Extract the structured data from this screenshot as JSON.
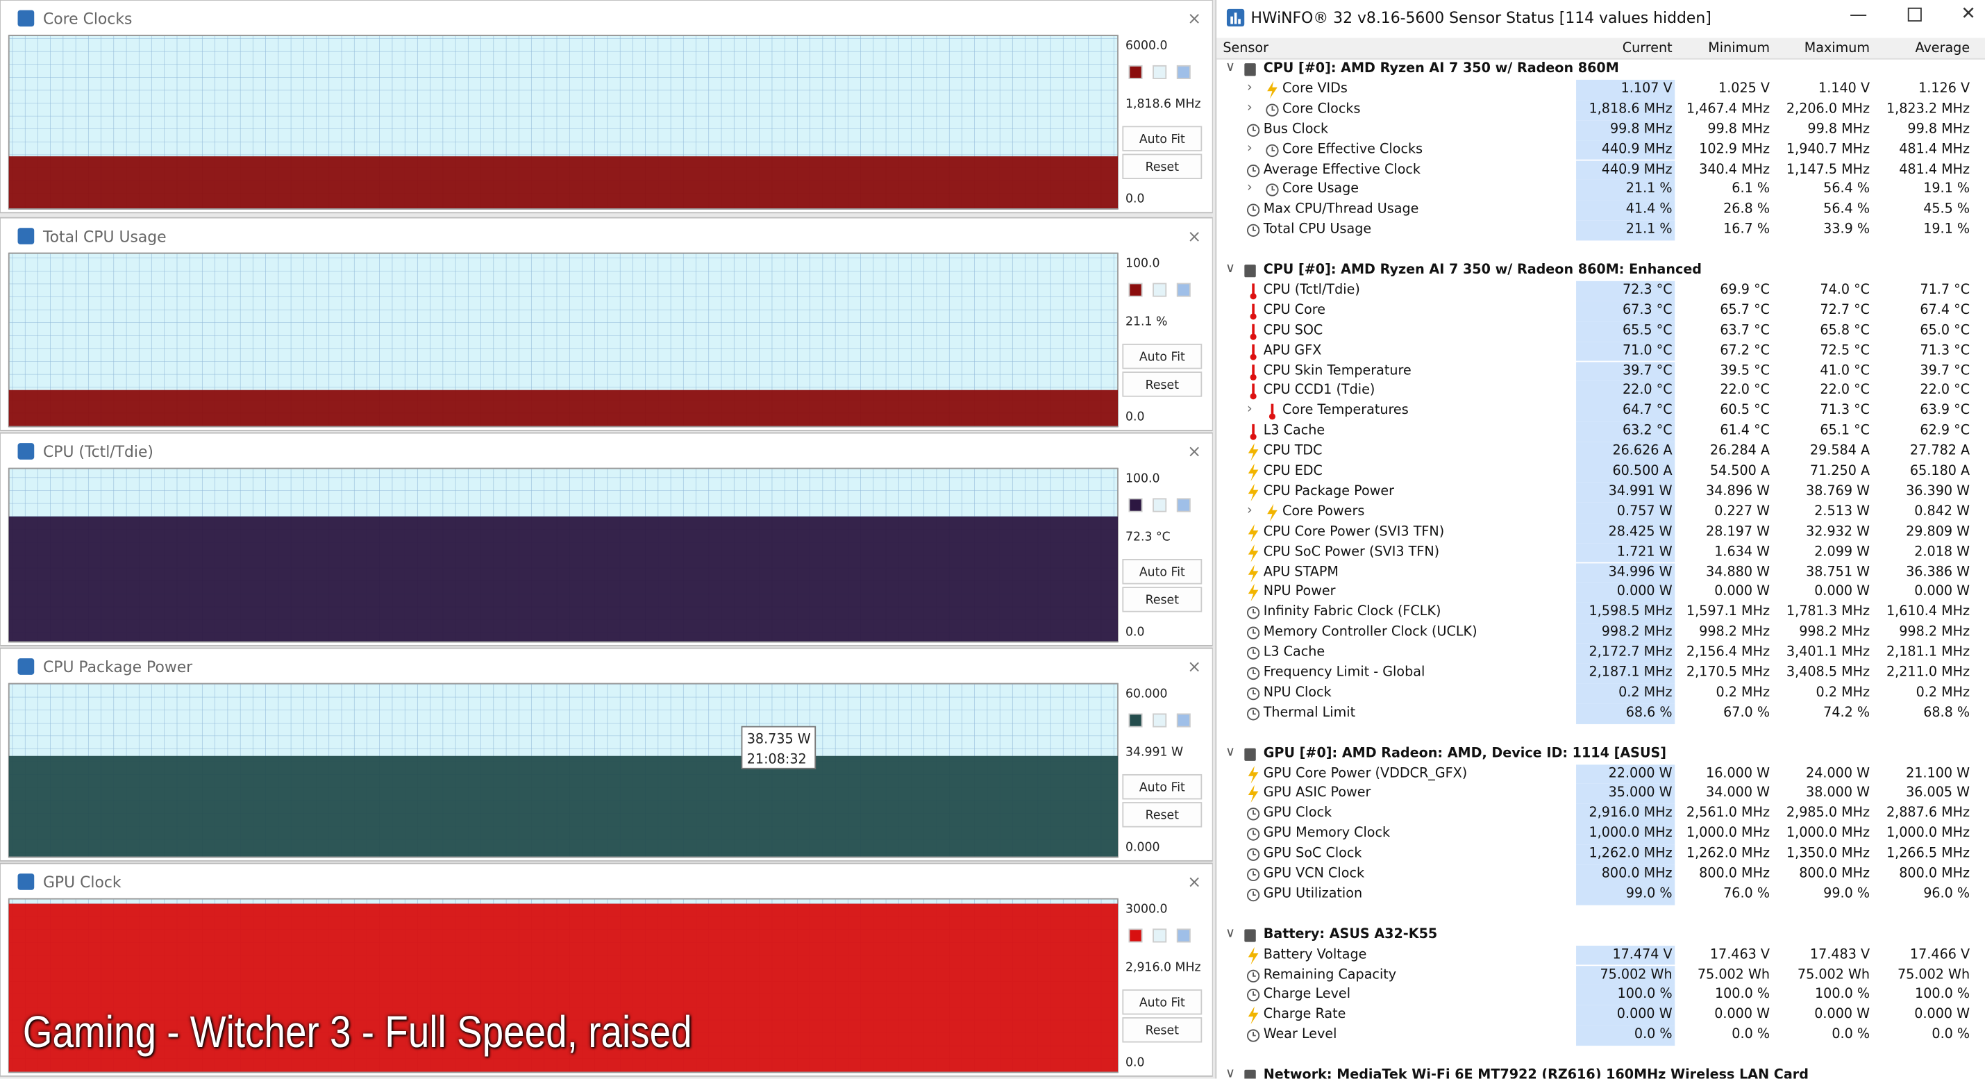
{
  "overlay_text": "Gaming - Witcher 3 - Full Speed, raised",
  "auto_fit": "Auto Fit",
  "reset": "Reset",
  "panels": [
    {
      "title": "Core Clocks",
      "max": {
        "value": 6000,
        "label": "6000.0"
      },
      "current": {
        "value": 1818.6,
        "label": "1,818.6 MHz"
      },
      "min": {
        "value": 0,
        "label": "0.0"
      },
      "color": "#8b0d0d"
    },
    {
      "title": "Total CPU Usage",
      "max": {
        "value": 100,
        "label": "100.0"
      },
      "current": {
        "value": 21.1,
        "label": "21.1 %"
      },
      "min": {
        "value": 0,
        "label": "0.0"
      },
      "color": "#8b0d0d"
    },
    {
      "title": "CPU (Tctl/Tdie)",
      "max": {
        "value": 100,
        "label": "100.0"
      },
      "current": {
        "value": 72.3,
        "label": "72.3 °C"
      },
      "min": {
        "value": 0,
        "label": "0.0"
      },
      "color": "#2c1741"
    },
    {
      "title": "CPU Package Power",
      "max": {
        "value": 60,
        "label": "60.000"
      },
      "current": {
        "value": 34.991,
        "label": "34.991 W"
      },
      "min": {
        "value": 0,
        "label": "0.000"
      },
      "color": "#244d4d",
      "tooltip": [
        "38.735 W",
        "21:08:32"
      ]
    },
    {
      "title": "GPU Clock",
      "max": {
        "value": 3000,
        "label": "3000.0"
      },
      "current": {
        "value": 2916,
        "label": "2,916.0 MHz"
      },
      "min": {
        "value": 0,
        "label": "0.0"
      },
      "color": "#d81010"
    }
  ],
  "sensor_window": {
    "title": "HWiNFO® 32 v8.16-5600 Sensor Status [114 values hidden]",
    "columns": [
      "Sensor",
      "Current",
      "Minimum",
      "Maximum",
      "Average"
    ],
    "groups": [
      {
        "name": "CPU [#0]: AMD Ryzen AI 7 350 w/ Radeon 860M",
        "rows": [
          [
            "Core VIDs",
            "1.107 V",
            "1.025 V",
            "1.140 V",
            "1.126 V"
          ],
          [
            "Core Clocks",
            "1,818.6 MHz",
            "1,467.4 MHz",
            "2,206.0 MHz",
            "1,823.2 MHz"
          ],
          [
            "Bus Clock",
            "99.8 MHz",
            "99.8 MHz",
            "99.8 MHz",
            "99.8 MHz"
          ],
          [
            "Core Effective Clocks",
            "440.9 MHz",
            "102.9 MHz",
            "1,940.7 MHz",
            "481.4 MHz"
          ],
          [
            "Average Effective Clock",
            "440.9 MHz",
            "340.4 MHz",
            "1,147.5 MHz",
            "481.4 MHz"
          ],
          [
            "Core Usage",
            "21.1 %",
            "6.1 %",
            "56.4 %",
            "19.1 %"
          ],
          [
            "Max CPU/Thread Usage",
            "41.4 %",
            "26.8 %",
            "56.4 %",
            "45.5 %"
          ],
          [
            "Total CPU Usage",
            "21.1 %",
            "16.7 %",
            "33.9 %",
            "19.1 %"
          ]
        ]
      },
      {
        "name": "CPU [#0]: AMD Ryzen AI 7 350 w/ Radeon 860M: Enhanced",
        "rows": [
          [
            "CPU (Tctl/Tdie)",
            "72.3 °C",
            "69.9 °C",
            "74.0 °C",
            "71.7 °C"
          ],
          [
            "CPU Core",
            "67.3 °C",
            "65.7 °C",
            "72.7 °C",
            "67.4 °C"
          ],
          [
            "CPU SOC",
            "65.5 °C",
            "63.7 °C",
            "65.8 °C",
            "65.0 °C"
          ],
          [
            "APU GFX",
            "71.0 °C",
            "67.2 °C",
            "72.5 °C",
            "71.3 °C"
          ],
          [
            "CPU Skin Temperature",
            "39.7 °C",
            "39.5 °C",
            "41.0 °C",
            "39.7 °C"
          ],
          [
            "CPU CCD1 (Tdie)",
            "22.0 °C",
            "22.0 °C",
            "22.0 °C",
            "22.0 °C"
          ],
          [
            "Core Temperatures",
            "64.7 °C",
            "60.5 °C",
            "71.3 °C",
            "63.9 °C"
          ],
          [
            "L3 Cache",
            "63.2 °C",
            "61.4 °C",
            "65.1 °C",
            "62.9 °C"
          ],
          [
            "CPU TDC",
            "26.626 A",
            "26.284 A",
            "29.584 A",
            "27.782 A"
          ],
          [
            "CPU EDC",
            "60.500 A",
            "54.500 A",
            "71.250 A",
            "65.180 A"
          ],
          [
            "CPU Package Power",
            "34.991 W",
            "34.896 W",
            "38.769 W",
            "36.390 W"
          ],
          [
            "Core Powers",
            "0.757 W",
            "0.227 W",
            "2.513 W",
            "0.842 W"
          ],
          [
            "CPU Core Power (SVI3 TFN)",
            "28.425 W",
            "28.197 W",
            "32.932 W",
            "29.809 W"
          ],
          [
            "CPU SoC Power (SVI3 TFN)",
            "1.721 W",
            "1.634 W",
            "2.099 W",
            "2.018 W"
          ],
          [
            "APU STAPM",
            "34.996 W",
            "34.880 W",
            "38.751 W",
            "36.386 W"
          ],
          [
            "NPU Power",
            "0.000 W",
            "0.000 W",
            "0.000 W",
            "0.000 W"
          ],
          [
            "Infinity Fabric Clock (FCLK)",
            "1,598.5 MHz",
            "1,597.1 MHz",
            "1,781.3 MHz",
            "1,610.4 MHz"
          ],
          [
            "Memory Controller Clock (UCLK)",
            "998.2 MHz",
            "998.2 MHz",
            "998.2 MHz",
            "998.2 MHz"
          ],
          [
            "L3 Cache",
            "2,172.7 MHz",
            "2,156.4 MHz",
            "3,401.1 MHz",
            "2,181.1 MHz"
          ],
          [
            "Frequency Limit - Global",
            "2,187.1 MHz",
            "2,170.5 MHz",
            "3,408.5 MHz",
            "2,211.0 MHz"
          ],
          [
            "NPU Clock",
            "0.2 MHz",
            "0.2 MHz",
            "0.2 MHz",
            "0.2 MHz"
          ],
          [
            "Thermal Limit",
            "68.6 %",
            "67.0 %",
            "74.2 %",
            "68.8 %"
          ]
        ]
      },
      {
        "name": "GPU [#0]: AMD Radeon: AMD, Device ID: 1114 [ASUS]",
        "rows": [
          [
            "GPU Core Power (VDDCR_GFX)",
            "22.000 W",
            "16.000 W",
            "24.000 W",
            "21.100 W"
          ],
          [
            "GPU ASIC Power",
            "35.000 W",
            "34.000 W",
            "38.000 W",
            "36.005 W"
          ],
          [
            "GPU Clock",
            "2,916.0 MHz",
            "2,561.0 MHz",
            "2,985.0 MHz",
            "2,887.6 MHz"
          ],
          [
            "GPU Memory Clock",
            "1,000.0 MHz",
            "1,000.0 MHz",
            "1,000.0 MHz",
            "1,000.0 MHz"
          ],
          [
            "GPU SoC Clock",
            "1,262.0 MHz",
            "1,262.0 MHz",
            "1,350.0 MHz",
            "1,266.5 MHz"
          ],
          [
            "GPU VCN Clock",
            "800.0 MHz",
            "800.0 MHz",
            "800.0 MHz",
            "800.0 MHz"
          ],
          [
            "GPU Utilization",
            "99.0 %",
            "76.0 %",
            "99.0 %",
            "96.0 %"
          ]
        ]
      },
      {
        "name": "Battery: ASUS  A32-K55",
        "rows": [
          [
            "Battery Voltage",
            "17.474 V",
            "17.463 V",
            "17.483 V",
            "17.466 V"
          ],
          [
            "Remaining Capacity",
            "75.002 Wh",
            "75.002 Wh",
            "75.002 Wh",
            "75.002 Wh"
          ],
          [
            "Charge Level",
            "100.0 %",
            "100.0 %",
            "100.0 %",
            "100.0 %"
          ],
          [
            "Charge Rate",
            "0.000 W",
            "0.000 W",
            "0.000 W",
            "0.000 W"
          ],
          [
            "Wear Level",
            "0.0 %",
            "0.0 %",
            "0.0 %",
            "0.0 %"
          ]
        ]
      },
      {
        "name": "Network: MediaTek Wi-Fi 6E MT7922 (RZ616) 160MHz Wireless LAN Card",
        "rows": []
      }
    ]
  }
}
